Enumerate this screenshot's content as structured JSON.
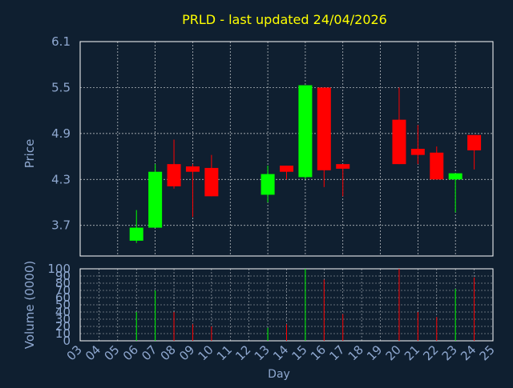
{
  "colors": {
    "background": "#0f1f30",
    "title": "#ffff00",
    "axis_text": "#8fa8d0",
    "grid": "#ffffff",
    "up": "#00ff00",
    "down": "#ff0000"
  },
  "chart_data": [
    {
      "type": "candlestick",
      "title": "PRLD - last updated 24/04/2026",
      "ylabel": "Price",
      "ylim": [
        3.3,
        6.1
      ],
      "yticks": [
        "3.7",
        "4.3",
        "4.9",
        "5.5",
        "6.1"
      ],
      "x_domain": [
        3,
        25
      ],
      "grid": true,
      "candles": [
        {
          "day": 6,
          "open": 3.5,
          "high": 3.9,
          "low": 3.47,
          "close": 3.67
        },
        {
          "day": 7,
          "open": 3.67,
          "high": 4.5,
          "low": 3.67,
          "close": 4.4
        },
        {
          "day": 8,
          "open": 4.5,
          "high": 4.82,
          "low": 4.18,
          "close": 4.21
        },
        {
          "day": 9,
          "open": 4.47,
          "high": 4.5,
          "low": 3.81,
          "close": 4.4
        },
        {
          "day": 10,
          "open": 4.45,
          "high": 4.62,
          "low": 4.08,
          "close": 4.08
        },
        {
          "day": 13,
          "open": 4.1,
          "high": 4.48,
          "low": 4.0,
          "close": 4.37
        },
        {
          "day": 14,
          "open": 4.48,
          "high": 4.48,
          "low": 4.3,
          "close": 4.4
        },
        {
          "day": 15,
          "open": 4.33,
          "high": 5.53,
          "low": 4.3,
          "close": 5.53
        },
        {
          "day": 16,
          "open": 5.5,
          "high": 5.5,
          "low": 4.2,
          "close": 4.42
        },
        {
          "day": 17,
          "open": 4.5,
          "high": 4.5,
          "low": 4.08,
          "close": 4.44
        },
        {
          "day": 20,
          "open": 5.08,
          "high": 5.5,
          "low": 4.5,
          "close": 4.5
        },
        {
          "day": 21,
          "open": 4.7,
          "high": 5.01,
          "low": 4.5,
          "close": 4.62
        },
        {
          "day": 22,
          "open": 4.65,
          "high": 4.73,
          "low": 4.3,
          "close": 4.3
        },
        {
          "day": 23,
          "open": 4.3,
          "high": 4.38,
          "low": 3.87,
          "close": 4.38
        },
        {
          "day": 24,
          "open": 4.88,
          "high": 4.88,
          "low": 4.43,
          "close": 4.68
        }
      ]
    },
    {
      "type": "bar",
      "ylabel": "Volume (0000)",
      "xlabel": "Day",
      "ylim": [
        0,
        100
      ],
      "yticks": [
        "0",
        "10",
        "20",
        "30",
        "40",
        "50",
        "60",
        "70",
        "80",
        "90",
        "100"
      ],
      "categories": [
        "03",
        "04",
        "05",
        "06",
        "07",
        "08",
        "09",
        "10",
        "11",
        "12",
        "13",
        "14",
        "15",
        "16",
        "17",
        "18",
        "19",
        "20",
        "21",
        "22",
        "23",
        "24",
        "25"
      ],
      "bars": [
        {
          "day": 6,
          "value": 40,
          "direction": "up"
        },
        {
          "day": 7,
          "value": 70,
          "direction": "up"
        },
        {
          "day": 8,
          "value": 40,
          "direction": "down"
        },
        {
          "day": 9,
          "value": 23,
          "direction": "down"
        },
        {
          "day": 10,
          "value": 20,
          "direction": "down"
        },
        {
          "day": 13,
          "value": 18,
          "direction": "up"
        },
        {
          "day": 14,
          "value": 23,
          "direction": "down"
        },
        {
          "day": 15,
          "value": 100,
          "direction": "up"
        },
        {
          "day": 16,
          "value": 85,
          "direction": "down"
        },
        {
          "day": 17,
          "value": 37,
          "direction": "down"
        },
        {
          "day": 20,
          "value": 100,
          "direction": "down"
        },
        {
          "day": 21,
          "value": 40,
          "direction": "down"
        },
        {
          "day": 22,
          "value": 33,
          "direction": "down"
        },
        {
          "day": 23,
          "value": 72,
          "direction": "up"
        },
        {
          "day": 24,
          "value": 88,
          "direction": "down"
        }
      ]
    }
  ]
}
